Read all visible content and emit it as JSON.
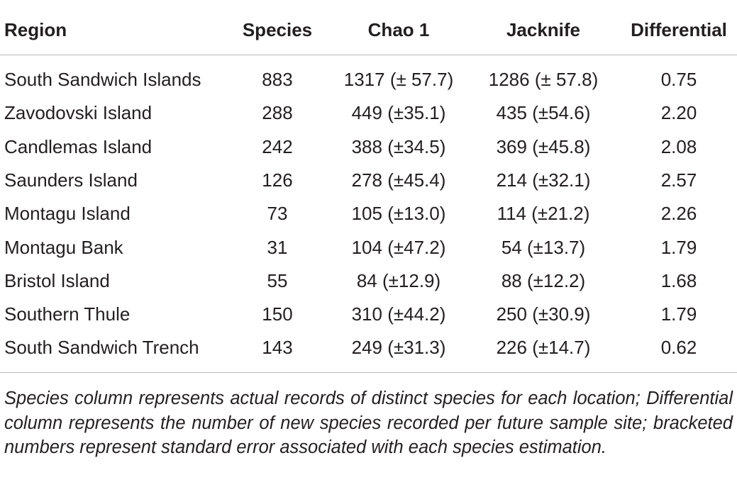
{
  "table": {
    "header": [
      "Region",
      "Species",
      "Chao 1",
      "Jacknife",
      "Differential"
    ],
    "rows": [
      [
        "South Sandwich Islands",
        "883",
        "1317 (± 57.7)",
        "1286 (± 57.8)",
        "0.75"
      ],
      [
        "Zavodovski Island",
        "288",
        "449 (±35.1)",
        "435 (±54.6)",
        "2.20"
      ],
      [
        "Candlemas Island",
        "242",
        "388 (±34.5)",
        "369 (±45.8)",
        "2.08"
      ],
      [
        "Saunders Island",
        "126",
        "278 (±45.4)",
        "214 (±32.1)",
        "2.57"
      ],
      [
        "Montagu Island",
        "73",
        "105 (±13.0)",
        "114 (±21.2)",
        "2.26"
      ],
      [
        "Montagu Bank",
        "31",
        "104 (±47.2)",
        "54 (±13.7)",
        "1.79"
      ],
      [
        "Bristol Island",
        "55",
        "84 (±12.9)",
        "88 (±12.2)",
        "1.68"
      ],
      [
        "Southern Thule",
        "150",
        "310 (±44.2)",
        "250 (±30.9)",
        "1.79"
      ],
      [
        "South Sandwich Trench",
        "143",
        "249 (±31.3)",
        "226 (±14.7)",
        "0.62"
      ]
    ],
    "footnote": "Species column represents actual records of distinct species for each location; Differential column represents the number of new species recorded per future sample site; bracketed numbers represent standard error associated with each species estimation."
  }
}
